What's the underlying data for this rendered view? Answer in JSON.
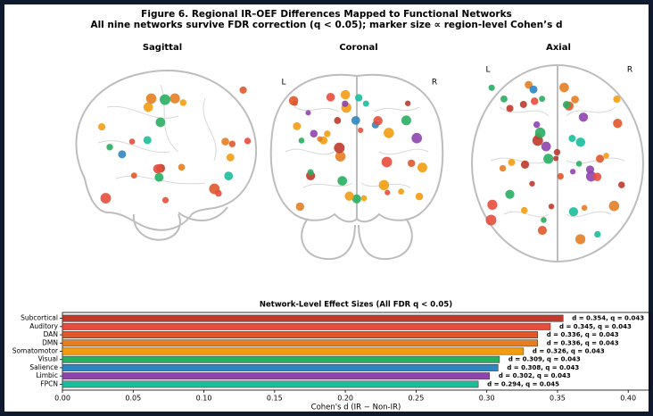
{
  "figure": {
    "title": "Figure 6. Regional IR–OEF Differences Mapped to Functional Networks",
    "subtitle": "All nine networks survive FDR correction (q < 0.05); marker size ∝ region-level Cohen’s d",
    "panels": [
      "Sagittal",
      "Coronal",
      "Axial"
    ],
    "coronal_labels": [
      "L",
      "R"
    ],
    "axial_labels": [
      "L",
      "R"
    ]
  },
  "chart_data": {
    "type": "barh",
    "title": "Network-Level Effect Sizes (All FDR q < 0.05)",
    "xlabel": "Cohen's d (IR − Non-IR)",
    "categories": [
      "Subcortical",
      "Auditory",
      "DAN",
      "DMN",
      "Somatomotor",
      "Visual",
      "Salience",
      "Limbic",
      "FPCN"
    ],
    "values": [
      0.354,
      0.345,
      0.336,
      0.336,
      0.326,
      0.309,
      0.308,
      0.302,
      0.294
    ],
    "value_labels": [
      "d = 0.354, q = 0.043",
      "d = 0.345, q = 0.043",
      "d = 0.336, q = 0.043",
      "d = 0.336, q = 0.043",
      "d = 0.326, q = 0.043",
      "d = 0.309, q = 0.043",
      "d = 0.308, q = 0.043",
      "d = 0.302, q = 0.043",
      "d = 0.294, q = 0.045"
    ],
    "colors": [
      "#c0392b",
      "#e74c3c",
      "#e0582a",
      "#e67e22",
      "#f39c12",
      "#27ae60",
      "#2e86c1",
      "#8e44ad",
      "#1abc9c"
    ],
    "xlim": [
      0,
      0.415
    ],
    "xticks": [
      {
        "value": 0,
        "label": "0.00"
      },
      {
        "value": 0.05,
        "label": "0.05"
      },
      {
        "value": 0.1,
        "label": "0.10"
      },
      {
        "value": 0.15,
        "label": "0.15"
      },
      {
        "value": 0.2,
        "label": "0.20"
      },
      {
        "value": 0.25,
        "label": "0.25"
      },
      {
        "value": 0.3,
        "label": "0.30"
      },
      {
        "value": 0.35,
        "label": "0.35"
      },
      {
        "value": 0.4,
        "label": "0.40"
      }
    ]
  }
}
